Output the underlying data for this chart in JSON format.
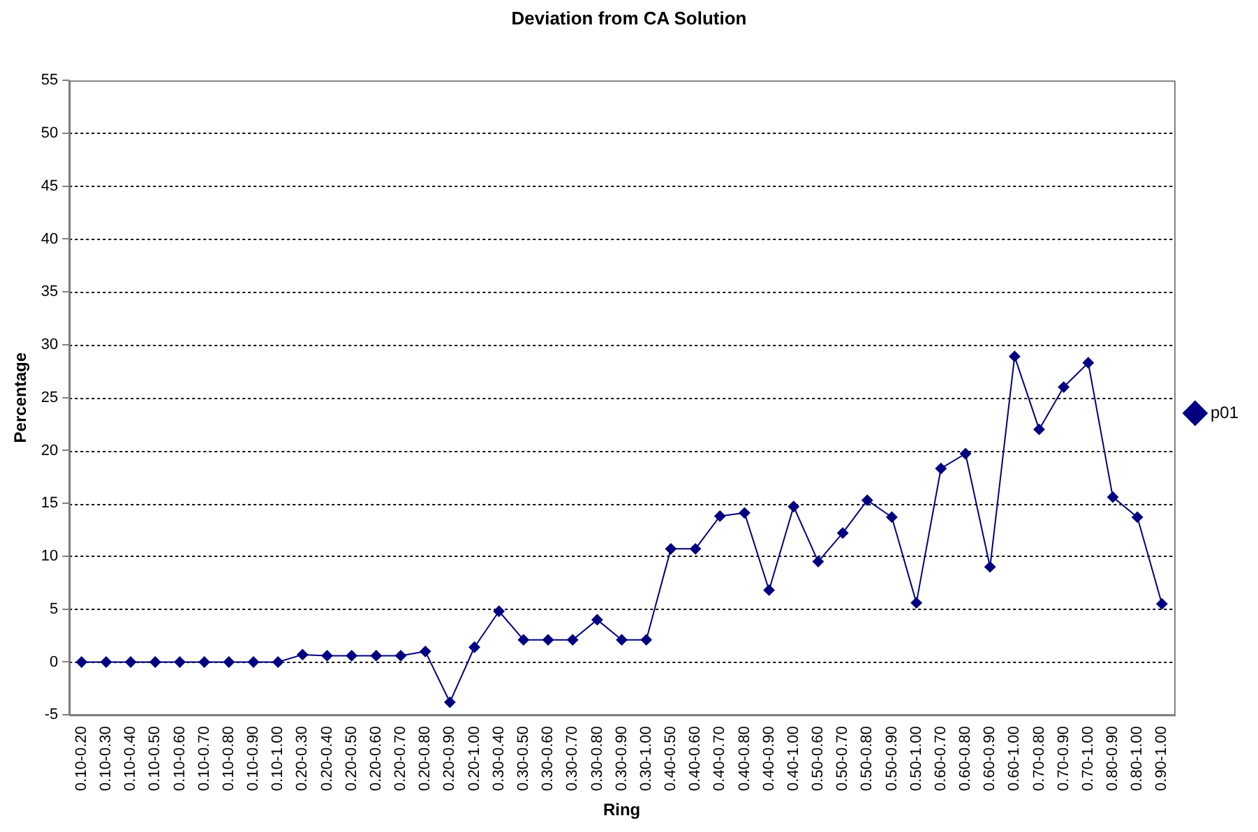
{
  "chart_data": {
    "type": "line",
    "title": "Deviation from CA Solution",
    "xlabel": "Ring",
    "ylabel": "Percentage",
    "categories": [
      "0.10-0.20",
      "0.10-0.30",
      "0.10-0.40",
      "0.10-0.50",
      "0.10-0.60",
      "0.10-0.70",
      "0.10-0.80",
      "0.10-0.90",
      "0.10-1.00",
      "0.20-0.30",
      "0.20-0.40",
      "0.20-0.50",
      "0.20-0.60",
      "0.20-0.70",
      "0.20-0.80",
      "0.20-0.90",
      "0.20-1.00",
      "0.30-0.40",
      "0.30-0.50",
      "0.30-0.60",
      "0.30-0.70",
      "0.30-0.80",
      "0.30-0.90",
      "0.30-1.00",
      "0.40-0.50",
      "0.40-0.60",
      "0.40-0.70",
      "0.40-0.80",
      "0.40-0.90",
      "0.40-1.00",
      "0.50-0.60",
      "0.50-0.70",
      "0.50-0.80",
      "0.50-0.90",
      "0.50-1.00",
      "0.60-0.70",
      "0.60-0.80",
      "0.60-0.90",
      "0.60-1.00",
      "0.70-0.80",
      "0.70-0.90",
      "0.70-1.00",
      "0.80-0.90",
      "0.80-1.00",
      "0.90-1.00"
    ],
    "series": [
      {
        "name": "p01",
        "color": "#000080",
        "values": [
          0,
          0,
          0,
          0,
          0,
          0,
          0,
          0,
          0,
          0.7,
          0.6,
          0.6,
          0.6,
          0.6,
          1.0,
          -3.8,
          1.4,
          4.8,
          2.1,
          2.1,
          2.1,
          4.0,
          2.1,
          2.1,
          10.7,
          10.7,
          13.8,
          14.1,
          6.8,
          14.7,
          9.5,
          12.2,
          15.3,
          13.7,
          5.6,
          18.3,
          19.7,
          9.0,
          28.9,
          22.0,
          26.0,
          28.3,
          15.6,
          13.7,
          5.5
        ]
      }
    ],
    "ylim": [
      -5,
      55
    ],
    "yticks": [
      -5,
      0,
      5,
      10,
      15,
      20,
      25,
      30,
      35,
      40,
      45,
      50,
      55
    ],
    "grid": "y",
    "legend": "right",
    "marker": "diamond",
    "line_style": "solid"
  }
}
